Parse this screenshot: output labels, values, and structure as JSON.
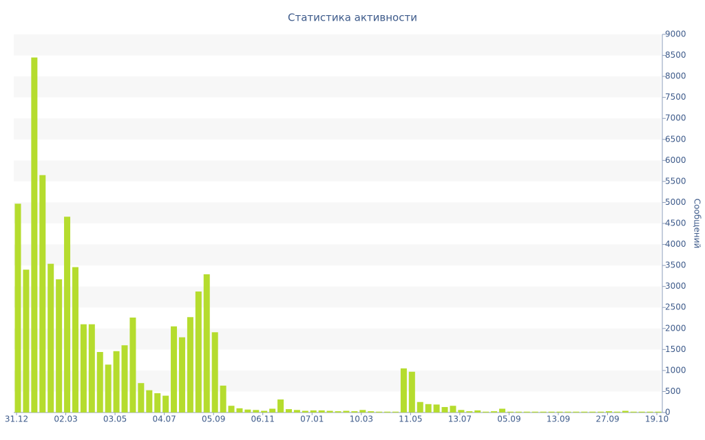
{
  "chart_data": {
    "type": "bar",
    "title": "Статистика активности",
    "y_label": "Сообщений",
    "categories": [
      "31.12",
      null,
      null,
      null,
      null,
      null,
      "02.03",
      null,
      null,
      null,
      null,
      null,
      "03.05",
      null,
      null,
      null,
      null,
      null,
      "04.07",
      null,
      null,
      null,
      null,
      null,
      "05.09",
      null,
      null,
      null,
      null,
      null,
      "06.11",
      null,
      null,
      null,
      null,
      null,
      "07.01",
      null,
      null,
      null,
      null,
      null,
      "10.03",
      null,
      null,
      null,
      null,
      null,
      "11.05",
      null,
      null,
      null,
      null,
      null,
      "13.07",
      null,
      null,
      null,
      null,
      null,
      "05.09",
      null,
      null,
      null,
      null,
      null,
      "13.09",
      null,
      null,
      null,
      null,
      null,
      "27.09",
      null,
      null,
      null,
      null,
      null,
      "19.10"
    ],
    "values": [
      4970,
      3400,
      8450,
      5650,
      3540,
      3170,
      4660,
      3460,
      2100,
      2100,
      1440,
      1140,
      1460,
      1600,
      2260,
      700,
      530,
      460,
      400,
      2050,
      1790,
      2270,
      2880,
      3290,
      1910,
      640,
      160,
      100,
      70,
      60,
      40,
      90,
      310,
      80,
      60,
      40,
      50,
      50,
      40,
      30,
      40,
      30,
      60,
      30,
      20,
      20,
      20,
      1050,
      970,
      250,
      200,
      190,
      130,
      160,
      60,
      30,
      50,
      20,
      30,
      90,
      20,
      20,
      20,
      20,
      20,
      20,
      20,
      20,
      20,
      20,
      20,
      20,
      30,
      20,
      40,
      20,
      20,
      20,
      20
    ],
    "color": "#b5dc2e",
    "ylim": [
      0,
      9000
    ],
    "yticks": [
      0,
      500,
      1000,
      1500,
      2000,
      2500,
      3000,
      3500,
      4000,
      4500,
      5000,
      5500,
      6000,
      6500,
      7000,
      7500,
      8000,
      8500,
      9000
    ],
    "grid": true,
    "y_axis_side": "right"
  }
}
